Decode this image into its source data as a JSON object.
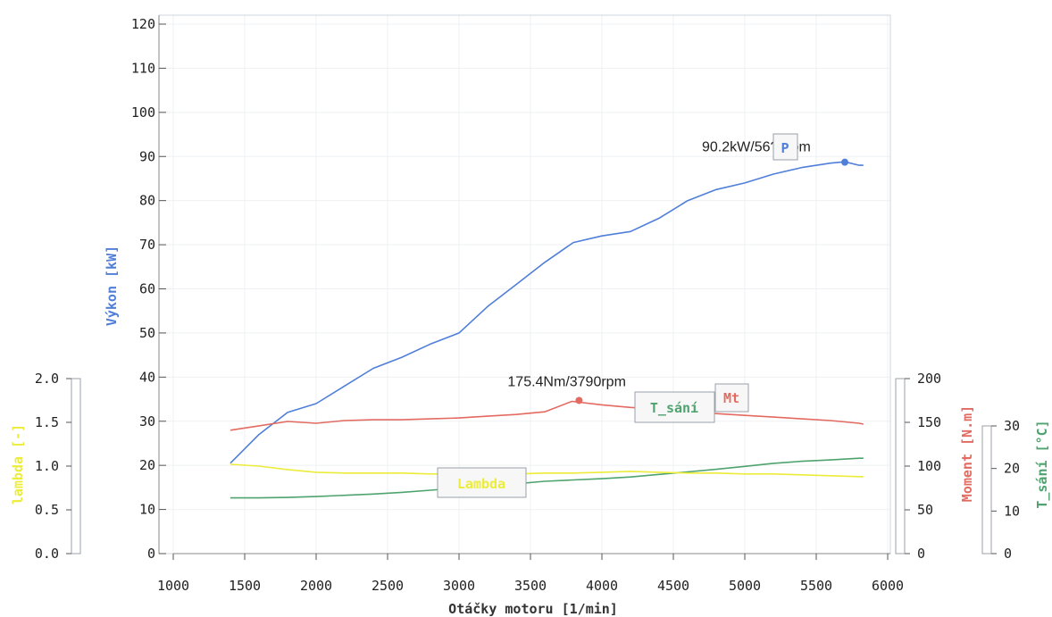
{
  "chart_data": {
    "type": "line",
    "xlabel": "Otáčky motoru   [1/min]",
    "x_ticks": [
      "1000",
      "1500",
      "2000",
      "2500",
      "3000",
      "3500",
      "4000",
      "4500",
      "5000",
      "5500",
      "6000"
    ],
    "xlim": [
      1000,
      6000
    ],
    "axes": {
      "power": {
        "label": "Výkon   [kW]",
        "ylim": [
          0,
          120
        ],
        "ticks": [
          "0",
          "10",
          "20",
          "30",
          "40",
          "50",
          "60",
          "70",
          "80",
          "90",
          "100",
          "110",
          "120"
        ],
        "color": "#4f7fd8"
      },
      "lambda": {
        "label": "lambda  [-]",
        "ylim": [
          0,
          2.0
        ],
        "ticks": [
          "0.0",
          "0.5",
          "1.0",
          "1.5",
          "2.0"
        ],
        "color": "#ecec3a"
      },
      "moment": {
        "label": "Moment  [N.m]",
        "ylim": [
          0,
          200
        ],
        "ticks": [
          "0",
          "50",
          "100",
          "150",
          "200"
        ],
        "color": "#e36a60"
      },
      "intake_temp": {
        "label": "T_sání  [°C]",
        "ylim": [
          0,
          30
        ],
        "ticks": [
          "0",
          "10",
          "20",
          "30"
        ],
        "color": "#4fa36e"
      }
    },
    "series": [
      {
        "name": "P",
        "axis": "power",
        "color": "#4f7fd8",
        "x": [
          1400,
          1600,
          1800,
          2000,
          2200,
          2400,
          2600,
          2800,
          3000,
          3200,
          3400,
          3600,
          3800,
          4000,
          4200,
          4400,
          4600,
          4800,
          5000,
          5200,
          5400,
          5600,
          5700,
          5800,
          5830
        ],
        "values": [
          20.5,
          27,
          32,
          34,
          38,
          42,
          44.5,
          47.5,
          50,
          56,
          61,
          66,
          70.5,
          72,
          73,
          76,
          80,
          82.5,
          84,
          86,
          87.5,
          88.5,
          88.8,
          88,
          88
        ]
      },
      {
        "name": "Mt",
        "axis": "moment",
        "color": "#e36a60",
        "x": [
          1400,
          1600,
          1800,
          2000,
          2200,
          2400,
          2600,
          2800,
          3000,
          3200,
          3400,
          3600,
          3790,
          4000,
          4200,
          4400,
          4600,
          4800,
          5000,
          5200,
          5400,
          5600,
          5800,
          5830
        ],
        "values": [
          141,
          146,
          151,
          149,
          152,
          153,
          153,
          154,
          155,
          157,
          159,
          162,
          174,
          170,
          167,
          165,
          162,
          160,
          158,
          156,
          154,
          152,
          149,
          148
        ]
      },
      {
        "name": "T_sání",
        "axis": "intake_temp",
        "color": "#4fa36e",
        "x": [
          1400,
          1600,
          1800,
          2000,
          2200,
          2400,
          2600,
          2800,
          3000,
          3200,
          3400,
          3600,
          3800,
          4000,
          4200,
          4400,
          4600,
          4800,
          5000,
          5200,
          5400,
          5600,
          5800,
          5830
        ],
        "values": [
          13.1,
          13.1,
          13.2,
          13.4,
          13.7,
          14.0,
          14.4,
          14.9,
          15.4,
          15.9,
          16.4,
          17.0,
          17.3,
          17.6,
          18.0,
          18.6,
          19.2,
          19.8,
          20.5,
          21.2,
          21.7,
          22.0,
          22.4,
          22.4
        ]
      },
      {
        "name": "Lambda",
        "axis": "lambda",
        "color": "#ecec3a",
        "x": [
          1400,
          1600,
          1800,
          2000,
          2200,
          2400,
          2600,
          2800,
          3000,
          3200,
          3400,
          3600,
          3800,
          4000,
          4200,
          4400,
          4600,
          4800,
          5000,
          5200,
          5400,
          5600,
          5800,
          5830
        ],
        "values": [
          1.02,
          1.0,
          0.96,
          0.93,
          0.92,
          0.92,
          0.92,
          0.91,
          0.91,
          0.91,
          0.91,
          0.92,
          0.92,
          0.93,
          0.94,
          0.93,
          0.92,
          0.92,
          0.91,
          0.91,
          0.9,
          0.89,
          0.88,
          0.88
        ]
      }
    ],
    "labels": {
      "power": "P",
      "moment": "Mt",
      "intake_temp": "T_sání",
      "lambda": "Lambda"
    },
    "annotations": {
      "power_max": {
        "text": "90.2kW/56??rpm",
        "x": 5700,
        "y": 88.7
      },
      "moment_max": {
        "text": "175.4Nm/3790rpm",
        "x": 3840,
        "y": 174
      }
    },
    "grid": true
  }
}
